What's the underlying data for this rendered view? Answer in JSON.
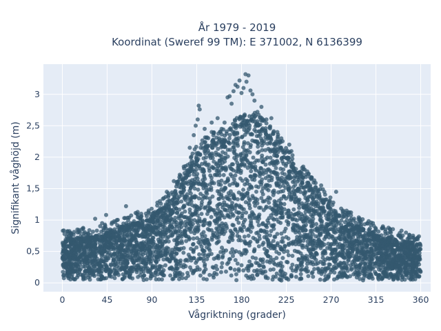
{
  "chart_data": {
    "type": "scatter",
    "title": [
      "År 1979 - 2019",
      "Koordinat (Sweref 99 TM): E 371002, N 6136399"
    ],
    "xlabel": "Vågriktning (grader)",
    "ylabel": "Signifikant våghöjd (m)",
    "xlim": [
      -19,
      370
    ],
    "ylim": [
      -0.14,
      3.48
    ],
    "x_ticks": [
      0,
      45,
      90,
      135,
      180,
      225,
      270,
      315,
      360
    ],
    "x_tick_labels": [
      "0",
      "45",
      "90",
      "135",
      "180",
      "225",
      "270",
      "315",
      "360"
    ],
    "y_ticks": [
      0,
      0.5,
      1,
      1.5,
      2,
      2.5,
      3
    ],
    "y_tick_labels": [
      "0",
      "0,5",
      "1",
      "1,5",
      "2",
      "2,5",
      "3"
    ],
    "grid": true,
    "legend": "none",
    "marker_color": "#2e5469",
    "envelope": {
      "x": [
        0,
        20,
        45,
        70,
        90,
        110,
        125,
        135,
        150,
        165,
        180,
        190,
        200,
        215,
        225,
        240,
        255,
        270,
        290,
        315,
        340,
        360
      ],
      "y_max": [
        0.68,
        0.72,
        0.8,
        0.95,
        1.05,
        1.35,
        1.75,
        2.05,
        2.25,
        2.3,
        2.55,
        2.6,
        2.5,
        2.25,
        2.05,
        1.75,
        1.45,
        1.2,
        0.95,
        0.78,
        0.68,
        0.62
      ],
      "y_min": [
        0.05,
        0.05,
        0.05,
        0.04,
        0.04,
        0.04,
        0.04,
        0.04,
        0.03,
        0.03,
        0.03,
        0.03,
        0.03,
        0.03,
        0.03,
        0.04,
        0.04,
        0.04,
        0.04,
        0.04,
        0.04,
        0.05
      ]
    },
    "outliers": [
      [
        15,
        0.72
      ],
      [
        26,
        0.78
      ],
      [
        33,
        1.02
      ],
      [
        40,
        0.95
      ],
      [
        44,
        1.08
      ],
      [
        48,
        0.85
      ],
      [
        54,
        0.78
      ],
      [
        64,
        1.22
      ],
      [
        72,
        0.98
      ],
      [
        80,
        0.92
      ],
      [
        88,
        1.1
      ],
      [
        98,
        1.3
      ],
      [
        105,
        1.45
      ],
      [
        112,
        1.62
      ],
      [
        118,
        1.72
      ],
      [
        122,
        1.85
      ],
      [
        128,
        2.15
      ],
      [
        132,
        2.35
      ],
      [
        134,
        2.5
      ],
      [
        136,
        2.6
      ],
      [
        137,
        2.82
      ],
      [
        138,
        2.76
      ],
      [
        143,
        2.45
      ],
      [
        150,
        2.55
      ],
      [
        156,
        2.62
      ],
      [
        160,
        2.45
      ],
      [
        163,
        2.55
      ],
      [
        166,
        2.95
      ],
      [
        168,
        2.97
      ],
      [
        170,
        2.85
      ],
      [
        172,
        3.05
      ],
      [
        174,
        3.15
      ],
      [
        176,
        3.12
      ],
      [
        178,
        3.22
      ],
      [
        180,
        3.02
      ],
      [
        182,
        3.1
      ],
      [
        184,
        3.32
      ],
      [
        185,
        3.2
      ],
      [
        187,
        3.3
      ],
      [
        189,
        3.06
      ],
      [
        191,
        3.0
      ],
      [
        193,
        2.9
      ],
      [
        196,
        2.72
      ],
      [
        200,
        2.8
      ],
      [
        205,
        2.6
      ],
      [
        210,
        2.62
      ],
      [
        216,
        2.4
      ],
      [
        220,
        2.3
      ],
      [
        228,
        2.2
      ],
      [
        235,
        1.75
      ],
      [
        242,
        1.85
      ],
      [
        250,
        1.65
      ],
      [
        260,
        1.55
      ],
      [
        268,
        1.3
      ],
      [
        275,
        1.45
      ],
      [
        282,
        1.15
      ],
      [
        290,
        1.12
      ],
      [
        300,
        0.9
      ],
      [
        312,
        0.95
      ],
      [
        322,
        0.9
      ],
      [
        330,
        0.8
      ],
      [
        338,
        0.75
      ],
      [
        348,
        0.72
      ],
      [
        356,
        0.7
      ]
    ]
  }
}
